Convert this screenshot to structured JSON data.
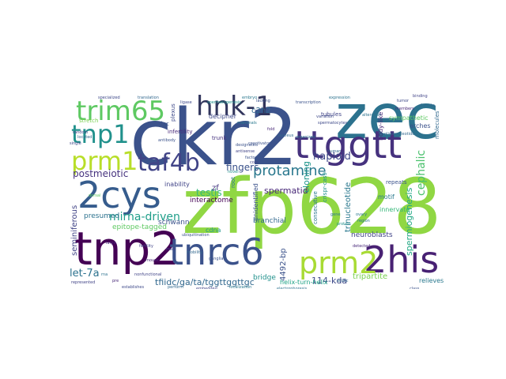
{
  "words": [
    {
      "text": "zfp628",
      "color": "#90d743"
    },
    {
      "text": "ckr2",
      "color": "#3b528b"
    },
    {
      "text": "zec",
      "color": "#2c728e"
    },
    {
      "text": "tnp2",
      "color": "#440154"
    },
    {
      "text": "ttggtt",
      "color": "#46327e"
    },
    {
      "text": "2cys",
      "color": "#365c8d"
    },
    {
      "text": "tnrc6",
      "color": "#3b528b"
    },
    {
      "text": "2his",
      "color": "#482173"
    },
    {
      "text": "prm2",
      "color": "#a8db34"
    },
    {
      "text": "trim65",
      "color": "#5ec962"
    },
    {
      "text": "hnk-1",
      "color": "#31355c"
    },
    {
      "text": "tnp1",
      "color": "#21918c"
    },
    {
      "text": "prm1",
      "color": "#b8de29"
    },
    {
      "text": "taf4b",
      "color": "#414487"
    },
    {
      "text": "protamine",
      "color": "#2a788e"
    },
    {
      "text": "cephalic",
      "color": "#4ac16d"
    },
    {
      "text": "mirna-driven",
      "color": "#1f9e89"
    },
    {
      "text": "tfiidc/ga/ta/tggttggttgc",
      "color": "#31688e"
    },
    {
      "text": "let-7a",
      "color": "#2c728e"
    },
    {
      "text": "haploid",
      "color": "#3e4989"
    },
    {
      "text": "fingers",
      "color": "#3b528b"
    },
    {
      "text": "spermatid",
      "color": "#482878"
    },
    {
      "text": "testis",
      "color": "#35b779"
    },
    {
      "text": "postmeiotic",
      "color": "#46327e"
    },
    {
      "text": "cloning",
      "color": "#1f968b"
    },
    {
      "text": "trinucleotide",
      "color": "#2a788e"
    },
    {
      "text": "spermiogenesis",
      "color": "#22a884"
    },
    {
      "text": "seminiferous",
      "color": "#414487"
    },
    {
      "text": "4492-bp",
      "color": "#3b528b"
    },
    {
      "text": "114-kda",
      "color": "#3e4989"
    },
    {
      "text": "tripartite",
      "color": "#7ad151"
    },
    {
      "text": "c2h2",
      "color": "#31688e"
    },
    {
      "text": "interactome",
      "color": "#440154"
    },
    {
      "text": "presumed",
      "color": "#2c728e"
    },
    {
      "text": "zf",
      "color": "#453781"
    },
    {
      "text": "neuroblasts",
      "color": "#404387"
    },
    {
      "text": "schwann",
      "color": "#3b528b"
    },
    {
      "text": "epitope-tagged",
      "color": "#5ec962"
    },
    {
      "text": "branchial",
      "color": "#31688e"
    },
    {
      "text": "bridge",
      "color": "#21918c"
    },
    {
      "text": "relieves",
      "color": "#2a788e"
    },
    {
      "text": "decipher",
      "color": "#3e4989"
    },
    {
      "text": "inability",
      "color": "#414487"
    },
    {
      "text": "unidentified",
      "color": "#3b528b"
    },
    {
      "text": "helix-turn-helix",
      "color": "#20a386"
    },
    {
      "text": "motif",
      "color": "#2a788e"
    },
    {
      "text": "innervate",
      "color": "#35b779"
    },
    {
      "text": "body-like",
      "color": "#482878"
    },
    {
      "text": "sympathetic",
      "color": "#5ec962"
    },
    {
      "text": "arches",
      "color": "#3b528b"
    },
    {
      "text": "molecules",
      "color": "#31688e"
    },
    {
      "text": "cdna",
      "color": "#1f968b"
    },
    {
      "text": "trunk",
      "color": "#46327e"
    },
    {
      "text": "plexus",
      "color": "#3e4989"
    },
    {
      "text": "infertility",
      "color": "#482878"
    },
    {
      "text": "zinc",
      "color": "#3b528b"
    },
    {
      "text": "crispr-cas9",
      "color": "#21918c"
    },
    {
      "text": "consecutive",
      "color": "#2a788e"
    },
    {
      "text": "stretch",
      "color": "#7ad151"
    },
    {
      "text": "tubules",
      "color": "#414487"
    },
    {
      "text": "repeats",
      "color": "#3b528b"
    },
    {
      "text": "root",
      "color": "#2c728e"
    },
    {
      "text": "specialized",
      "color": "#3e4989"
    },
    {
      "text": "translation",
      "color": "#31688e"
    },
    {
      "text": "random",
      "color": "#414487"
    },
    {
      "text": "ovary",
      "color": "#2a788e"
    },
    {
      "text": "detected",
      "color": "#482878"
    },
    {
      "text": "class",
      "color": "#3b528b"
    },
    {
      "text": "discrete",
      "color": "#31688e"
    },
    {
      "text": "large",
      "color": "#482878"
    },
    {
      "text": "male",
      "color": "#3e4989"
    },
    {
      "text": "fertility",
      "color": "#414487"
    },
    {
      "text": "mobility",
      "color": "#31688e"
    },
    {
      "text": "ganglia",
      "color": "#3b528b"
    },
    {
      "text": "localization",
      "color": "#2a788e"
    },
    {
      "text": "establishes",
      "color": "#3e4989"
    },
    {
      "text": "perform",
      "color": "#31688e"
    },
    {
      "text": "embedded",
      "color": "#414487"
    },
    {
      "text": "pre",
      "color": "#482878"
    },
    {
      "text": "electrophoresis",
      "color": "#2c728e"
    },
    {
      "text": "ubiquitination",
      "color": "#3b528b"
    },
    {
      "text": "spermatogenesis",
      "color": "#21918c"
    },
    {
      "text": "transcription",
      "color": "#3b528b"
    },
    {
      "text": "expression",
      "color": "#2c728e"
    },
    {
      "text": "dorsal",
      "color": "#5ec962"
    },
    {
      "text": "ligase",
      "color": "#3e4989"
    },
    {
      "text": "antisense",
      "color": "#414487"
    },
    {
      "text": "embryo",
      "color": "#2a788e"
    },
    {
      "text": "nucleus",
      "color": "#31688e"
    },
    {
      "text": "coactivator",
      "color": "#3b528b"
    },
    {
      "text": "fold",
      "color": "#482878"
    },
    {
      "text": "spermatocytes",
      "color": "#3e4989"
    },
    {
      "text": "organized",
      "color": "#2c728e"
    },
    {
      "text": "oligonucleotide",
      "color": "#31688e"
    },
    {
      "text": "binding",
      "color": "#414487"
    },
    {
      "text": "designated",
      "color": "#3b528b"
    },
    {
      "text": "mammals",
      "color": "#2a788e"
    },
    {
      "text": "novel",
      "color": "#21918c"
    },
    {
      "text": "tumor",
      "color": "#3e4989"
    },
    {
      "text": "members",
      "color": "#482878"
    },
    {
      "text": "located",
      "color": "#31688e"
    },
    {
      "text": "core",
      "color": "#414487"
    },
    {
      "text": "lacking",
      "color": "#3b528b"
    },
    {
      "text": "alteration",
      "color": "#2c728e"
    },
    {
      "text": "variation",
      "color": "#3e4989"
    },
    {
      "text": "acidic",
      "color": "#31688e"
    },
    {
      "text": "region",
      "color": "#2a788e"
    },
    {
      "text": "mouse",
      "color": "#482878"
    },
    {
      "text": "factor",
      "color": "#3b528b"
    },
    {
      "text": "represented",
      "color": "#414487"
    },
    {
      "text": "rna",
      "color": "#2c728e"
    },
    {
      "text": "single",
      "color": "#3e4989"
    },
    {
      "text": "human",
      "color": "#31688e"
    },
    {
      "text": "antibody",
      "color": "#3b528b"
    },
    {
      "text": "nonfunctional",
      "color": "#414487"
    },
    {
      "text": "gene",
      "color": "#2a788e"
    },
    {
      "text": "protein",
      "color": "#21918c"
    }
  ]
}
